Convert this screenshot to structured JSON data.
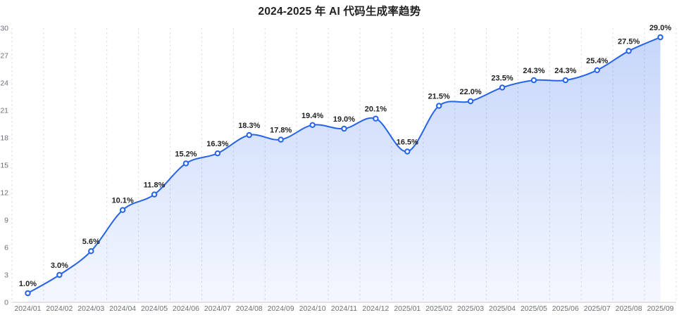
{
  "page": {
    "background": "#ffffff"
  },
  "chart_data": {
    "type": "area",
    "title": "2024-2025 年 AI 代码生成率趋势",
    "categories": [
      "2024/01",
      "2024/02",
      "2024/03",
      "2024/04",
      "2024/05",
      "2024/06",
      "2024/07",
      "2024/08",
      "2024/09",
      "2024/10",
      "2024/11",
      "2024/12",
      "2025/01",
      "2025/02",
      "2025/03",
      "2025/04",
      "2025/05",
      "2025/06",
      "2025/07",
      "2025/08",
      "2025/09"
    ],
    "values": [
      1.0,
      3.0,
      5.6,
      10.1,
      11.8,
      15.2,
      16.3,
      18.3,
      17.8,
      19.4,
      19.0,
      20.1,
      16.5,
      21.5,
      22.0,
      23.5,
      24.3,
      24.3,
      25.4,
      27.5,
      29.0
    ],
    "point_labels": [
      "1.0%",
      "3.0%",
      "5.6%",
      "10.1%",
      "11.8%",
      "15.2%",
      "16.3%",
      "18.3%",
      "17.8%",
      "19.4%",
      "19.0%",
      "20.1%",
      "16.5%",
      "21.5%",
      "22.0%",
      "23.5%",
      "24.3%",
      "24.3%",
      "25.4%",
      "27.5%",
      "29.0%"
    ],
    "xlabel": "",
    "ylabel": "",
    "ylim": [
      0,
      30
    ],
    "y_ticks": [
      0,
      3,
      6,
      9,
      12,
      15,
      18,
      21,
      24,
      27,
      30
    ],
    "grid": {
      "vertical_dashed": true,
      "horizontal": false
    },
    "legend_position": "none",
    "smooth": true,
    "show_markers": true,
    "colors": {
      "line": "#2563eb",
      "marker_fill": "#ffffff",
      "area_top": "rgba(37,99,235,0.26)",
      "area_bottom": "rgba(37,99,235,0.05)",
      "gridline": "#dcdcdc",
      "axis_line": "#cccccc",
      "axis_text": "#6a6f77",
      "point_label_text": "#222222",
      "title_text": "#222222"
    }
  }
}
